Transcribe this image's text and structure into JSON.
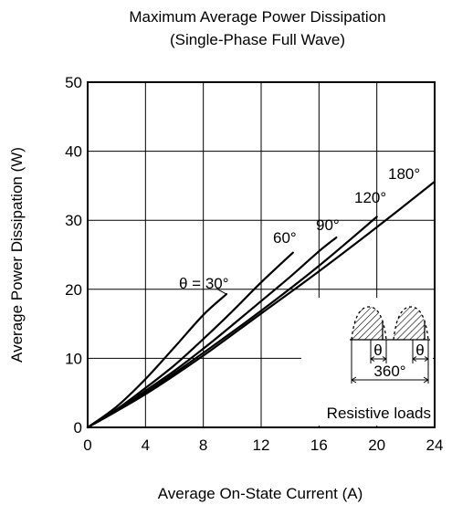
{
  "chart_data": {
    "type": "line",
    "title": "Maximum Average Power Dissipation",
    "subtitle": "(Single-Phase Full Wave)",
    "xlabel": "Average On-State Current  (A)",
    "ylabel": "Average Power Dissipation  (W)",
    "xlim": [
      0,
      24
    ],
    "ylim": [
      0,
      50
    ],
    "xticks": [
      0,
      4,
      8,
      12,
      16,
      20,
      24
    ],
    "yticks": [
      0,
      10,
      20,
      30,
      40,
      50
    ],
    "grid": true,
    "series": [
      {
        "name": "θ = 30°",
        "x": [
          0,
          2,
          4,
          6,
          8,
          9.6
        ],
        "y": [
          0,
          3,
          7,
          11.6,
          16.3,
          19.3
        ]
      },
      {
        "name": "60°",
        "x": [
          0,
          2,
          4,
          6,
          8,
          10,
          12,
          14.2
        ],
        "y": [
          0,
          2.6,
          5.7,
          9,
          12.8,
          16.8,
          21,
          25.3
        ]
      },
      {
        "name": "90°",
        "x": [
          0,
          2,
          4,
          6,
          8,
          10,
          12,
          14,
          16,
          17.2
        ],
        "y": [
          0,
          2.4,
          5.3,
          8.2,
          11.4,
          14.8,
          18.3,
          21.8,
          25.5,
          27.5
        ]
      },
      {
        "name": "120°",
        "x": [
          0,
          4,
          8,
          12,
          16,
          20
        ],
        "y": [
          0,
          5,
          10.8,
          16.9,
          23.4,
          30.5
        ]
      },
      {
        "name": "180°",
        "x": [
          0,
          4,
          8,
          12,
          16,
          20,
          24
        ],
        "y": [
          0,
          4.8,
          10.4,
          16.5,
          22.6,
          29,
          35.6
        ]
      }
    ],
    "inset": {
      "theta_left": "θ",
      "theta_right": "θ",
      "period": "360°",
      "note": "Resistive loads"
    }
  }
}
